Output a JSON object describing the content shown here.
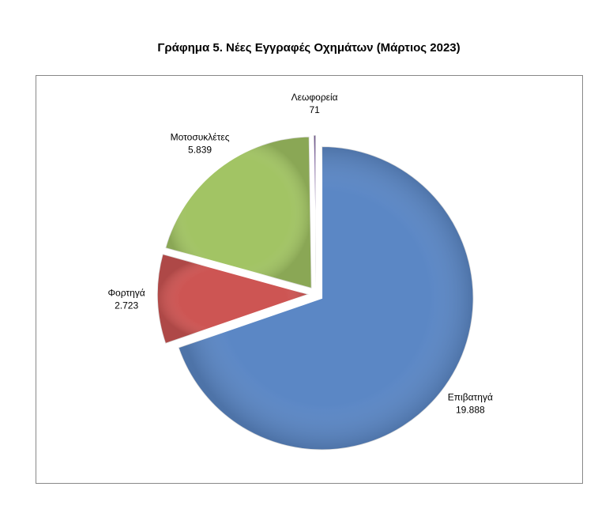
{
  "chart_data": {
    "type": "pie",
    "title": "Γράφημα 5. Νέες Εγγραφές Οχημάτων (Μάρτιος 2023)",
    "categories": [
      "Επιβατηγά",
      "Φορτηγά",
      "Μοτοσυκλέτες",
      "Λεωφορεία"
    ],
    "values": [
      19888,
      2723,
      5839,
      71
    ],
    "value_labels": [
      "19.888",
      "2.723",
      "5.839",
      "71"
    ],
    "colors": [
      "#5b87c5",
      "#cd5553",
      "#a2c464",
      "#8064a2"
    ]
  }
}
